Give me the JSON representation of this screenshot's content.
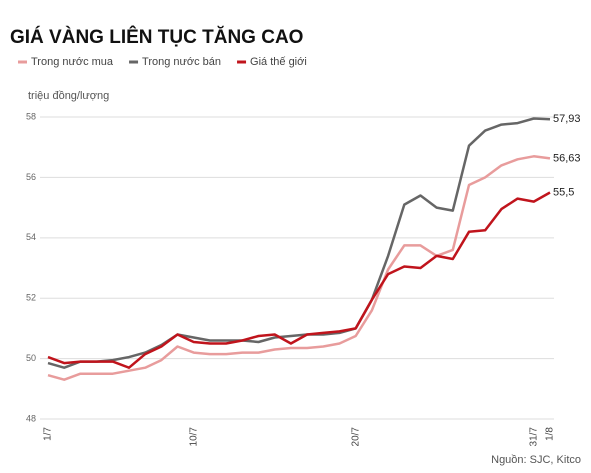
{
  "chart_data": {
    "type": "line",
    "title": "GIÁ VÀNG LIÊN TỤC TĂNG CAO",
    "y_label": "triệu đồng/lượng",
    "source": "Nguồn: SJC, Kitco",
    "categories": [
      "1/7",
      null,
      null,
      null,
      null,
      null,
      null,
      null,
      null,
      "10/7",
      null,
      null,
      null,
      null,
      null,
      null,
      null,
      null,
      null,
      "20/7",
      null,
      null,
      null,
      null,
      null,
      null,
      null,
      null,
      null,
      null,
      "31/7",
      "1/8"
    ],
    "series": [
      {
        "name": "Trong nước mua",
        "color": "#e89c9c",
        "values": [
          49.45,
          49.3,
          49.5,
          49.5,
          49.5,
          49.6,
          49.7,
          49.95,
          50.4,
          50.2,
          50.15,
          50.15,
          50.2,
          50.2,
          50.3,
          50.35,
          50.35,
          50.4,
          50.5,
          50.75,
          51.6,
          52.95,
          53.75,
          53.75,
          53.4,
          53.6,
          55.75,
          56.0,
          56.4,
          56.6,
          56.7,
          56.63
        ],
        "value_labels": [
          null,
          null,
          null,
          null,
          null,
          null,
          null,
          null,
          null,
          null,
          null,
          null,
          null,
          null,
          null,
          null,
          null,
          null,
          null,
          null,
          null,
          null,
          null,
          null,
          null,
          null,
          null,
          null,
          null,
          null,
          null,
          "56,63"
        ]
      },
      {
        "name": "Trong nước bán",
        "color": "#666666",
        "values": [
          49.85,
          49.7,
          49.9,
          49.9,
          49.95,
          50.05,
          50.2,
          50.45,
          50.8,
          50.7,
          50.6,
          50.6,
          50.6,
          50.55,
          50.7,
          50.75,
          50.8,
          50.8,
          50.85,
          51.0,
          51.95,
          53.4,
          55.1,
          55.4,
          55.0,
          54.9,
          57.05,
          57.55,
          57.75,
          57.8,
          57.95,
          57.93
        ],
        "value_labels": [
          null,
          null,
          null,
          null,
          null,
          null,
          null,
          null,
          null,
          null,
          null,
          null,
          null,
          null,
          null,
          null,
          null,
          null,
          null,
          null,
          null,
          null,
          null,
          null,
          null,
          null,
          null,
          null,
          null,
          null,
          null,
          "57,93"
        ]
      },
      {
        "name": "Giá thế giới",
        "color": "#c0141c",
        "values": [
          50.05,
          49.85,
          49.9,
          49.9,
          49.9,
          49.7,
          50.15,
          50.4,
          50.8,
          50.55,
          50.5,
          50.5,
          50.6,
          50.75,
          50.8,
          50.5,
          50.8,
          50.85,
          50.9,
          51.0,
          51.95,
          52.8,
          53.05,
          53.0,
          53.4,
          53.3,
          54.2,
          54.25,
          54.95,
          55.3,
          55.2,
          55.5
        ],
        "value_labels": [
          null,
          null,
          null,
          null,
          null,
          null,
          null,
          null,
          null,
          null,
          null,
          null,
          null,
          null,
          null,
          null,
          null,
          null,
          null,
          null,
          null,
          null,
          null,
          null,
          null,
          null,
          null,
          null,
          null,
          null,
          null,
          "55,5"
        ]
      }
    ],
    "ylim": [
      48,
      58.2
    ],
    "yticks": [
      48,
      50,
      52,
      54,
      56,
      58
    ],
    "grid": true
  }
}
